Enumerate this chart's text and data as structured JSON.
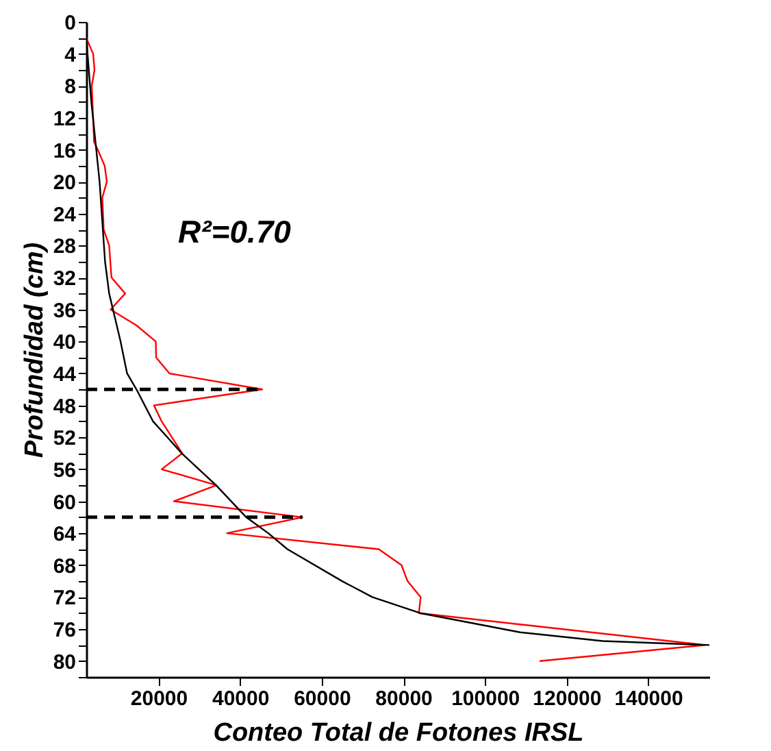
{
  "chart_data": {
    "type": "line",
    "xlabel": "Conteo Total de Fotones IRSL",
    "ylabel": "Profundidad (cm)",
    "annotations": [
      "R²=0.70"
    ],
    "series": [
      {
        "color": "#ff0000",
        "x": [
          2300,
          3980,
          4320,
          3640,
          3800,
          3980,
          4210,
          5120,
          6800,
          7340,
          6230,
          6570,
          7910,
          8480,
          11840,
          8250,
          14630,
          19330,
          19430,
          22690,
          45420,
          18890,
          20770,
          25810,
          20770,
          34200,
          23790,
          55260,
          36790,
          73970,
          79550,
          81030,
          84250,
          83810,
          154000,
          113400
        ],
        "values": [
          2,
          4,
          6,
          8,
          10,
          12,
          15,
          16,
          18,
          20,
          22,
          26,
          28,
          32,
          34,
          36,
          38,
          40,
          42,
          44,
          46,
          48,
          50,
          54,
          56,
          58,
          60,
          62,
          64,
          66,
          68,
          70,
          72,
          74,
          78,
          80
        ]
      },
      {
        "color": "#000000",
        "x": [
          2300,
          3540,
          5560,
          6900,
          7910,
          10700,
          12300,
          14600,
          18660,
          25700,
          34100,
          41500,
          46900,
          51600,
          65000,
          72400,
          84100,
          108600,
          128800,
          155000
        ],
        "values": [
          2,
          10,
          20,
          30,
          34,
          40,
          44,
          46,
          50,
          54,
          58,
          62,
          64,
          66,
          70,
          72,
          74,
          76.4,
          77.5,
          78
        ]
      }
    ],
    "ref_lines": [
      {
        "axis": "y",
        "value": 46,
        "color": "#000000",
        "line_style": "dashed"
      },
      {
        "axis": "y",
        "value": 62,
        "color": "#000000",
        "line_style": "dashed"
      }
    ],
    "xlim": [
      2300,
      155000
    ],
    "ylim": [
      82,
      0
    ],
    "xticks": [
      20000,
      40000,
      60000,
      80000,
      100000,
      120000,
      140000
    ],
    "yticks": [
      0,
      {
        "value": 2,
        "label": null
      },
      4,
      {
        "value": 6,
        "label": null
      },
      8,
      {
        "value": 10,
        "label": null
      },
      12,
      {
        "value": 14,
        "label": null
      },
      16,
      {
        "value": 18,
        "label": null
      },
      20,
      {
        "value": 22,
        "label": null
      },
      24,
      {
        "value": 26,
        "label": null
      },
      28,
      {
        "value": 30,
        "label": null
      },
      32,
      {
        "value": 34,
        "label": null
      },
      36,
      {
        "value": 38,
        "label": null
      },
      40,
      {
        "value": 42,
        "label": null
      },
      44,
      {
        "value": 46,
        "label": null
      },
      48,
      {
        "value": 50,
        "label": null
      },
      52,
      {
        "value": 54,
        "label": null
      },
      56,
      {
        "value": 58,
        "label": null
      },
      60,
      {
        "value": 62,
        "label": null
      },
      64,
      {
        "value": 66,
        "label": null
      },
      68,
      {
        "value": 70,
        "label": null
      },
      72,
      {
        "value": 74,
        "label": null
      },
      76,
      {
        "value": 78,
        "label": null
      },
      80,
      {
        "value": 82,
        "label": null
      }
    ],
    "marker": "none",
    "line_style": "solid"
  }
}
